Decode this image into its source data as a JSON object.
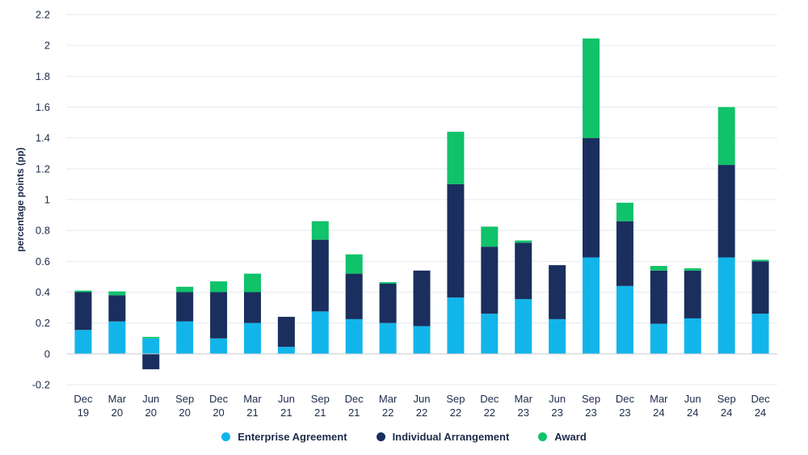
{
  "chart_data": {
    "type": "bar",
    "stacked": true,
    "title": "",
    "xlabel": "",
    "ylabel": "percentage points (pp)",
    "ylim": [
      -0.2,
      2.2
    ],
    "yticks": [
      -0.2,
      0,
      0.2,
      0.4,
      0.6,
      0.8,
      1,
      1.2,
      1.4,
      1.6,
      1.8,
      2,
      2.2
    ],
    "ytick_labels": [
      "-0.2",
      "0",
      "0.2",
      "0.4",
      "0.6",
      "0.8",
      "1",
      "1.2",
      "1.4",
      "1.6",
      "1.8",
      "2",
      "2.2"
    ],
    "grid": true,
    "legend_position": "bottom-center",
    "categories": [
      {
        "month": "Dec",
        "year": "19"
      },
      {
        "month": "Mar",
        "year": "20"
      },
      {
        "month": "Jun",
        "year": "20"
      },
      {
        "month": "Sep",
        "year": "20"
      },
      {
        "month": "Dec",
        "year": "20"
      },
      {
        "month": "Mar",
        "year": "21"
      },
      {
        "month": "Jun",
        "year": "21"
      },
      {
        "month": "Sep",
        "year": "21"
      },
      {
        "month": "Dec",
        "year": "21"
      },
      {
        "month": "Mar",
        "year": "22"
      },
      {
        "month": "Jun",
        "year": "22"
      },
      {
        "month": "Sep",
        "year": "22"
      },
      {
        "month": "Dec",
        "year": "22"
      },
      {
        "month": "Mar",
        "year": "23"
      },
      {
        "month": "Jun",
        "year": "23"
      },
      {
        "month": "Sep",
        "year": "23"
      },
      {
        "month": "Dec",
        "year": "23"
      },
      {
        "month": "Mar",
        "year": "24"
      },
      {
        "month": "Jun",
        "year": "24"
      },
      {
        "month": "Sep",
        "year": "24"
      },
      {
        "month": "Dec",
        "year": "24"
      }
    ],
    "series": [
      {
        "name": "Enterprise Agreement",
        "color": "#12b5ea",
        "values": [
          0.155,
          0.21,
          0.1,
          0.21,
          0.1,
          0.2,
          0.045,
          0.275,
          0.225,
          0.2,
          0.18,
          0.365,
          0.26,
          0.355,
          0.225,
          0.625,
          0.44,
          0.195,
          0.23,
          0.625,
          0.26
        ]
      },
      {
        "name": "Individual Arrangement",
        "color": "#1a2f5e",
        "values": [
          0.245,
          0.17,
          -0.1,
          0.19,
          0.3,
          0.2,
          0.195,
          0.465,
          0.295,
          0.255,
          0.36,
          0.735,
          0.435,
          0.365,
          0.35,
          0.775,
          0.42,
          0.345,
          0.31,
          0.6,
          0.34
        ]
      },
      {
        "name": "Award",
        "color": "#10c26a",
        "values": [
          0.01,
          0.025,
          0.01,
          0.035,
          0.07,
          0.12,
          0.0,
          0.12,
          0.125,
          0.01,
          0.0,
          0.34,
          0.13,
          0.015,
          0.0,
          0.645,
          0.12,
          0.03,
          0.015,
          0.375,
          0.01
        ]
      }
    ]
  }
}
